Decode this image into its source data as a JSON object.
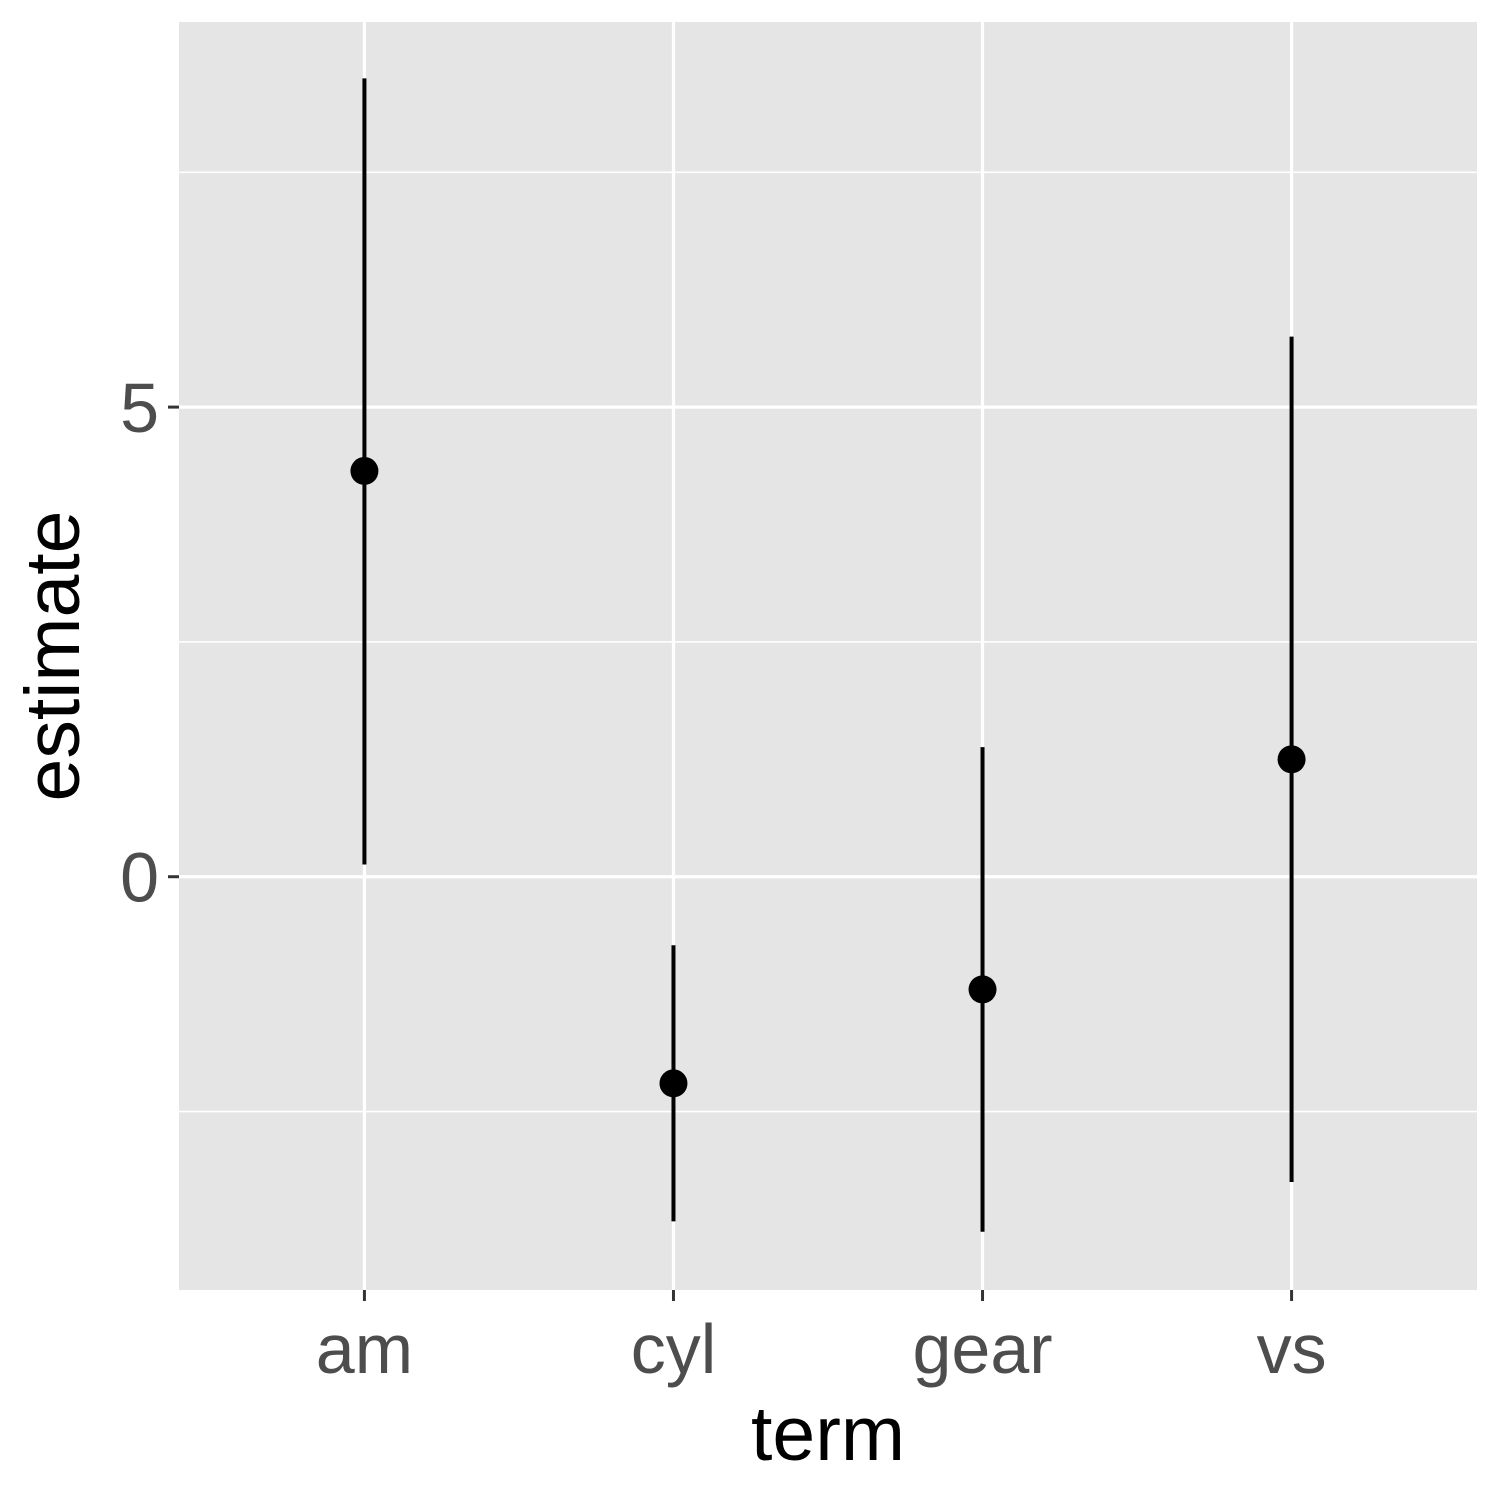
{
  "chart_data": {
    "type": "pointrange",
    "title": "",
    "xlabel": "term",
    "ylabel": "estimate",
    "categories": [
      "am",
      "cyl",
      "gear",
      "vs"
    ],
    "estimate": [
      4.32,
      -2.2,
      -1.2,
      1.25
    ],
    "conf_low": [
      0.13,
      -3.67,
      -3.78,
      -3.25
    ],
    "conf_high": [
      8.5,
      -0.73,
      1.38,
      5.75
    ],
    "ylim": [
      -4.4,
      9.1
    ],
    "y_ticks": [
      0,
      5
    ],
    "y_tick_labels": [
      "0",
      "5"
    ],
    "y_minor_gridlines": [
      -2.5,
      2.5,
      7.5
    ],
    "grid": true,
    "colors": {
      "panel_background": "#e5e5e5",
      "grid": "#ffffff",
      "marks": "#000000",
      "tick_label": "#4d4d4d",
      "tick_mark": "#333333"
    }
  }
}
